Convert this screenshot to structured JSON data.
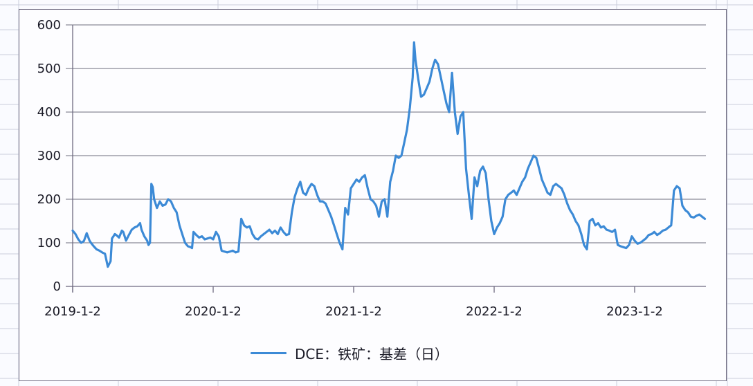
{
  "colors": {
    "series": "#3c8ad6",
    "gridline": "#8a8a96",
    "axis": "#6e6a80",
    "text": "#1a1a26",
    "sheet_grid": "#c9ccdb"
  },
  "legend": {
    "label": "DCE：铁矿：基差（日）"
  },
  "chart_data": {
    "type": "line",
    "title": "",
    "xlabel": "",
    "ylabel": "",
    "ylim": [
      0,
      600
    ],
    "yticks": [
      0,
      100,
      200,
      300,
      400,
      500,
      600
    ],
    "xtick_labels": [
      "2019-1-2",
      "2020-1-2",
      "2021-1-2",
      "2022-1-2",
      "2023-1-2"
    ],
    "grid": {
      "horizontal": true,
      "vertical": false
    },
    "legend_position": "bottom",
    "series": [
      {
        "name": "DCE：铁矿：基差（日）",
        "x_years_since_2019": [
          0.0,
          0.02,
          0.04,
          0.06,
          0.08,
          0.1,
          0.12,
          0.13,
          0.15,
          0.17,
          0.19,
          0.21,
          0.23,
          0.25,
          0.27,
          0.28,
          0.29,
          0.3,
          0.31,
          0.33,
          0.35,
          0.36,
          0.38,
          0.4,
          0.42,
          0.44,
          0.46,
          0.48,
          0.49,
          0.51,
          0.53,
          0.54,
          0.55,
          0.56,
          0.57,
          0.58,
          0.6,
          0.62,
          0.64,
          0.66,
          0.68,
          0.7,
          0.72,
          0.74,
          0.76,
          0.78,
          0.8,
          0.82,
          0.84,
          0.85,
          0.86,
          0.88,
          0.9,
          0.92,
          0.94,
          0.96,
          0.98,
          1.0,
          1.02,
          1.04,
          1.06,
          1.08,
          1.1,
          1.12,
          1.14,
          1.16,
          1.18,
          1.2,
          1.22,
          1.24,
          1.26,
          1.28,
          1.3,
          1.32,
          1.34,
          1.36,
          1.38,
          1.4,
          1.42,
          1.44,
          1.46,
          1.48,
          1.5,
          1.52,
          1.54,
          1.56,
          1.58,
          1.6,
          1.62,
          1.64,
          1.66,
          1.68,
          1.7,
          1.72,
          1.74,
          1.76,
          1.78,
          1.8,
          1.82,
          1.84,
          1.86,
          1.88,
          1.9,
          1.92,
          1.94,
          1.96,
          1.98,
          2.0,
          2.02,
          2.04,
          2.06,
          2.08,
          2.1,
          2.12,
          2.14,
          2.16,
          2.18,
          2.2,
          2.22,
          2.24,
          2.26,
          2.28,
          2.3,
          2.32,
          2.34,
          2.36,
          2.38,
          2.4,
          2.42,
          2.43,
          2.44,
          2.46,
          2.48,
          2.5,
          2.52,
          2.54,
          2.56,
          2.58,
          2.6,
          2.62,
          2.64,
          2.66,
          2.68,
          2.7,
          2.72,
          2.74,
          2.76,
          2.78,
          2.8,
          2.82,
          2.84,
          2.86,
          2.88,
          2.9,
          2.92,
          2.94,
          2.96,
          2.98,
          3.0,
          3.02,
          3.04,
          3.06,
          3.08,
          3.1,
          3.12,
          3.14,
          3.16,
          3.18,
          3.2,
          3.22,
          3.24,
          3.26,
          3.28,
          3.3,
          3.32,
          3.34,
          3.36,
          3.38,
          3.4,
          3.42,
          3.44,
          3.46,
          3.48,
          3.5,
          3.52,
          3.54,
          3.56,
          3.58,
          3.6,
          3.62,
          3.64,
          3.66,
          3.68,
          3.7,
          3.72,
          3.74,
          3.76,
          3.78,
          3.8,
          3.82,
          3.84,
          3.86,
          3.88,
          3.9,
          3.92,
          3.94,
          3.96,
          3.98,
          4.0,
          4.02,
          4.04,
          4.06,
          4.08,
          4.1,
          4.12,
          4.14,
          4.16,
          4.18,
          4.2,
          4.22,
          4.24,
          4.25,
          4.26,
          4.28,
          4.3,
          4.32,
          4.34,
          4.36,
          4.38,
          4.4,
          4.42,
          4.44,
          4.46,
          4.48,
          4.5
        ],
        "values": [
          128,
          120,
          108,
          100,
          104,
          122,
          105,
          100,
          92,
          85,
          82,
          78,
          75,
          45,
          58,
          110,
          115,
          120,
          118,
          112,
          128,
          125,
          105,
          118,
          130,
          135,
          138,
          145,
          130,
          115,
          105,
          95,
          100,
          235,
          228,
          200,
          180,
          195,
          185,
          188,
          200,
          195,
          180,
          170,
          140,
          120,
          100,
          92,
          90,
          88,
          125,
          118,
          112,
          115,
          108,
          110,
          112,
          108,
          125,
          115,
          82,
          80,
          78,
          80,
          82,
          78,
          80,
          155,
          140,
          135,
          138,
          120,
          110,
          108,
          115,
          120,
          125,
          130,
          122,
          128,
          120,
          135,
          125,
          118,
          120,
          170,
          205,
          225,
          240,
          215,
          210,
          225,
          235,
          230,
          210,
          195,
          195,
          190,
          175,
          160,
          140,
          120,
          100,
          85,
          180,
          165,
          225,
          235,
          245,
          240,
          250,
          255,
          225,
          200,
          195,
          185,
          160,
          195,
          200,
          160,
          240,
          265,
          300,
          295,
          300,
          330,
          360,
          410,
          480,
          560,
          520,
          475,
          435,
          440,
          455,
          470,
          500,
          520,
          510,
          480,
          450,
          420,
          400,
          490,
          400,
          350,
          390,
          400,
          270,
          210,
          155,
          250,
          230,
          265,
          275,
          260,
          200,
          150,
          120,
          135,
          145,
          160,
          200,
          210,
          215,
          220,
          210,
          225,
          240,
          250,
          270,
          285,
          300,
          295,
          270,
          245,
          230,
          215,
          210,
          230,
          235,
          230,
          225,
          210,
          190,
          175,
          165,
          150,
          140,
          120,
          95,
          85,
          150,
          155,
          140,
          145,
          135,
          138,
          130,
          128,
          125,
          130,
          95,
          92,
          90,
          88,
          95,
          115,
          105,
          98,
          100,
          105,
          110,
          118,
          120,
          125,
          118,
          122,
          128,
          130,
          135,
          138,
          140,
          220,
          230,
          225,
          185,
          175,
          170,
          160,
          158,
          162,
          165,
          160,
          155,
          150,
          158,
          155
        ]
      }
    ]
  }
}
